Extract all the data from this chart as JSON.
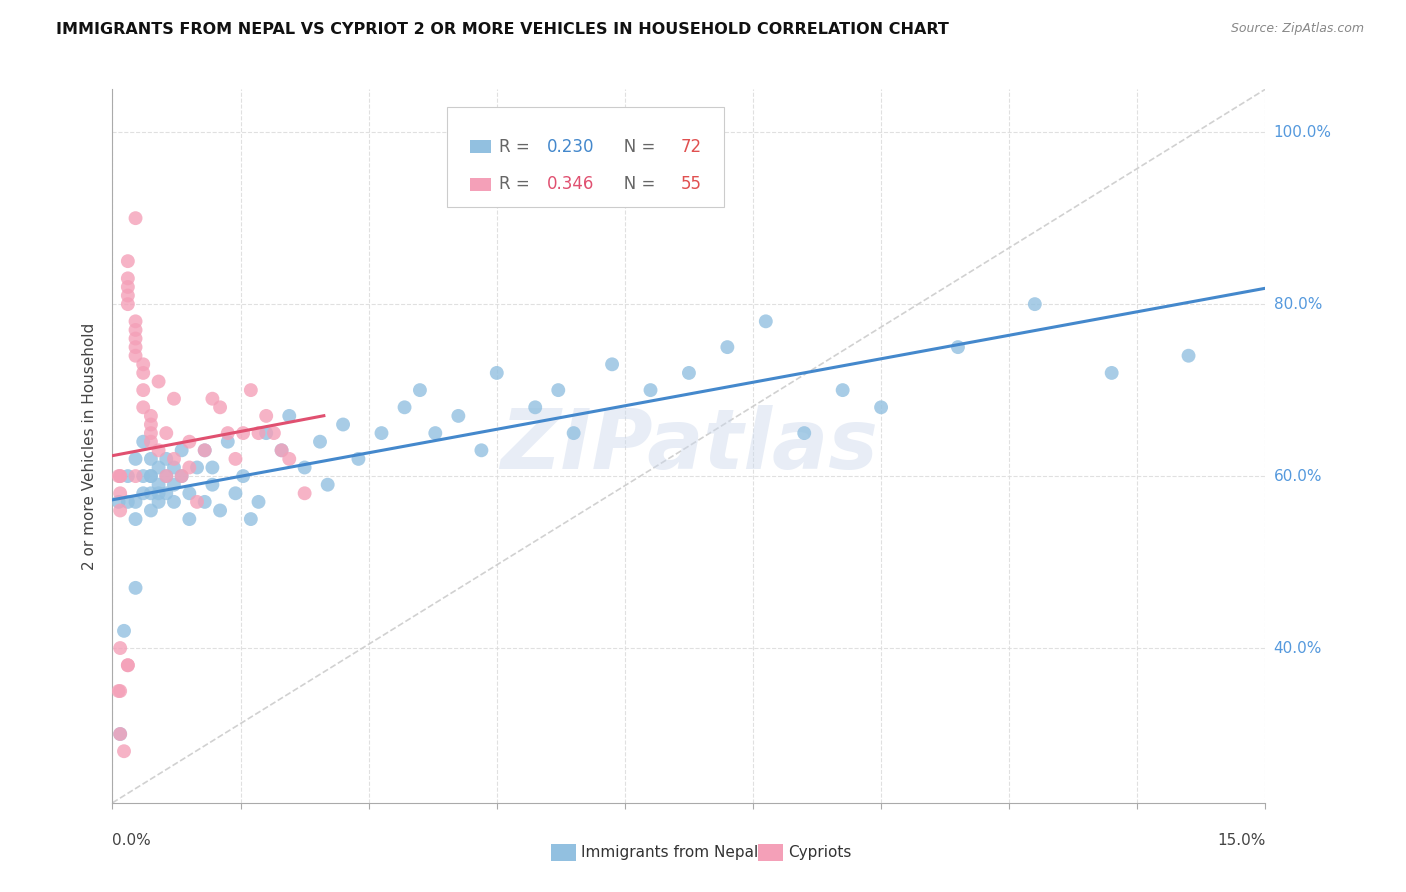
{
  "title": "IMMIGRANTS FROM NEPAL VS CYPRIOT 2 OR MORE VEHICLES IN HOUSEHOLD CORRELATION CHART",
  "source": "Source: ZipAtlas.com",
  "ylabel": "2 or more Vehicles in Household",
  "watermark": "ZIPatlas",
  "nepal_R": "0.230",
  "nepal_N": "72",
  "cypriot_R": "0.346",
  "cypriot_N": "55",
  "nepal_color": "#92c0e0",
  "cypriot_color": "#f4a0b8",
  "nepal_line_color": "#4488cc",
  "cypriot_line_color": "#e05070",
  "diagonal_color": "#cccccc",
  "background_color": "#ffffff",
  "grid_color": "#dddddd",
  "legend_border_color": "#cccccc",
  "right_label_color": "#5599dd",
  "nepal_x": [
    0.0008,
    0.0015,
    0.002,
    0.002,
    0.003,
    0.003,
    0.003,
    0.004,
    0.004,
    0.004,
    0.005,
    0.005,
    0.005,
    0.005,
    0.005,
    0.006,
    0.006,
    0.006,
    0.006,
    0.007,
    0.007,
    0.007,
    0.008,
    0.008,
    0.008,
    0.009,
    0.009,
    0.01,
    0.01,
    0.011,
    0.012,
    0.012,
    0.013,
    0.013,
    0.014,
    0.015,
    0.016,
    0.017,
    0.018,
    0.019,
    0.02,
    0.022,
    0.023,
    0.025,
    0.027,
    0.028,
    0.03,
    0.032,
    0.035,
    0.038,
    0.04,
    0.042,
    0.045,
    0.048,
    0.05,
    0.055,
    0.058,
    0.06,
    0.065,
    0.07,
    0.075,
    0.08,
    0.085,
    0.09,
    0.095,
    0.1,
    0.11,
    0.12,
    0.13,
    0.001,
    0.003,
    0.14
  ],
  "nepal_y": [
    0.57,
    0.42,
    0.6,
    0.57,
    0.57,
    0.55,
    0.62,
    0.58,
    0.6,
    0.64,
    0.56,
    0.58,
    0.6,
    0.62,
    0.6,
    0.57,
    0.59,
    0.61,
    0.58,
    0.58,
    0.6,
    0.62,
    0.57,
    0.59,
    0.61,
    0.63,
    0.6,
    0.55,
    0.58,
    0.61,
    0.57,
    0.63,
    0.59,
    0.61,
    0.56,
    0.64,
    0.58,
    0.6,
    0.55,
    0.57,
    0.65,
    0.63,
    0.67,
    0.61,
    0.64,
    0.59,
    0.66,
    0.62,
    0.65,
    0.68,
    0.7,
    0.65,
    0.67,
    0.63,
    0.72,
    0.68,
    0.7,
    0.65,
    0.73,
    0.7,
    0.72,
    0.75,
    0.78,
    0.65,
    0.7,
    0.68,
    0.75,
    0.8,
    0.72,
    0.3,
    0.47,
    0.74
  ],
  "cypriot_x": [
    0.0008,
    0.0008,
    0.001,
    0.001,
    0.001,
    0.001,
    0.0015,
    0.002,
    0.002,
    0.002,
    0.002,
    0.002,
    0.003,
    0.003,
    0.003,
    0.003,
    0.003,
    0.004,
    0.004,
    0.004,
    0.004,
    0.005,
    0.005,
    0.005,
    0.005,
    0.006,
    0.006,
    0.007,
    0.007,
    0.008,
    0.008,
    0.009,
    0.01,
    0.01,
    0.011,
    0.012,
    0.013,
    0.014,
    0.015,
    0.016,
    0.017,
    0.018,
    0.019,
    0.02,
    0.021,
    0.022,
    0.023,
    0.025,
    0.001,
    0.002,
    0.003,
    0.001,
    0.002,
    0.001,
    0.003
  ],
  "cypriot_y": [
    0.6,
    0.35,
    0.58,
    0.6,
    0.56,
    0.3,
    0.28,
    0.82,
    0.83,
    0.81,
    0.85,
    0.8,
    0.78,
    0.77,
    0.75,
    0.76,
    0.74,
    0.73,
    0.72,
    0.7,
    0.68,
    0.67,
    0.65,
    0.66,
    0.64,
    0.63,
    0.71,
    0.6,
    0.65,
    0.62,
    0.69,
    0.6,
    0.61,
    0.64,
    0.57,
    0.63,
    0.69,
    0.68,
    0.65,
    0.62,
    0.65,
    0.7,
    0.65,
    0.67,
    0.65,
    0.63,
    0.62,
    0.58,
    0.4,
    0.38,
    0.9,
    0.35,
    0.38,
    0.6,
    0.6
  ],
  "xlim": [
    0.0,
    0.15
  ],
  "ylim": [
    0.22,
    1.05
  ],
  "yticks": [
    0.4,
    0.6,
    0.8,
    1.0
  ],
  "ytick_labels": [
    "40.0%",
    "60.0%",
    "80.0%",
    "100.0%"
  ],
  "xtick_count": 10
}
